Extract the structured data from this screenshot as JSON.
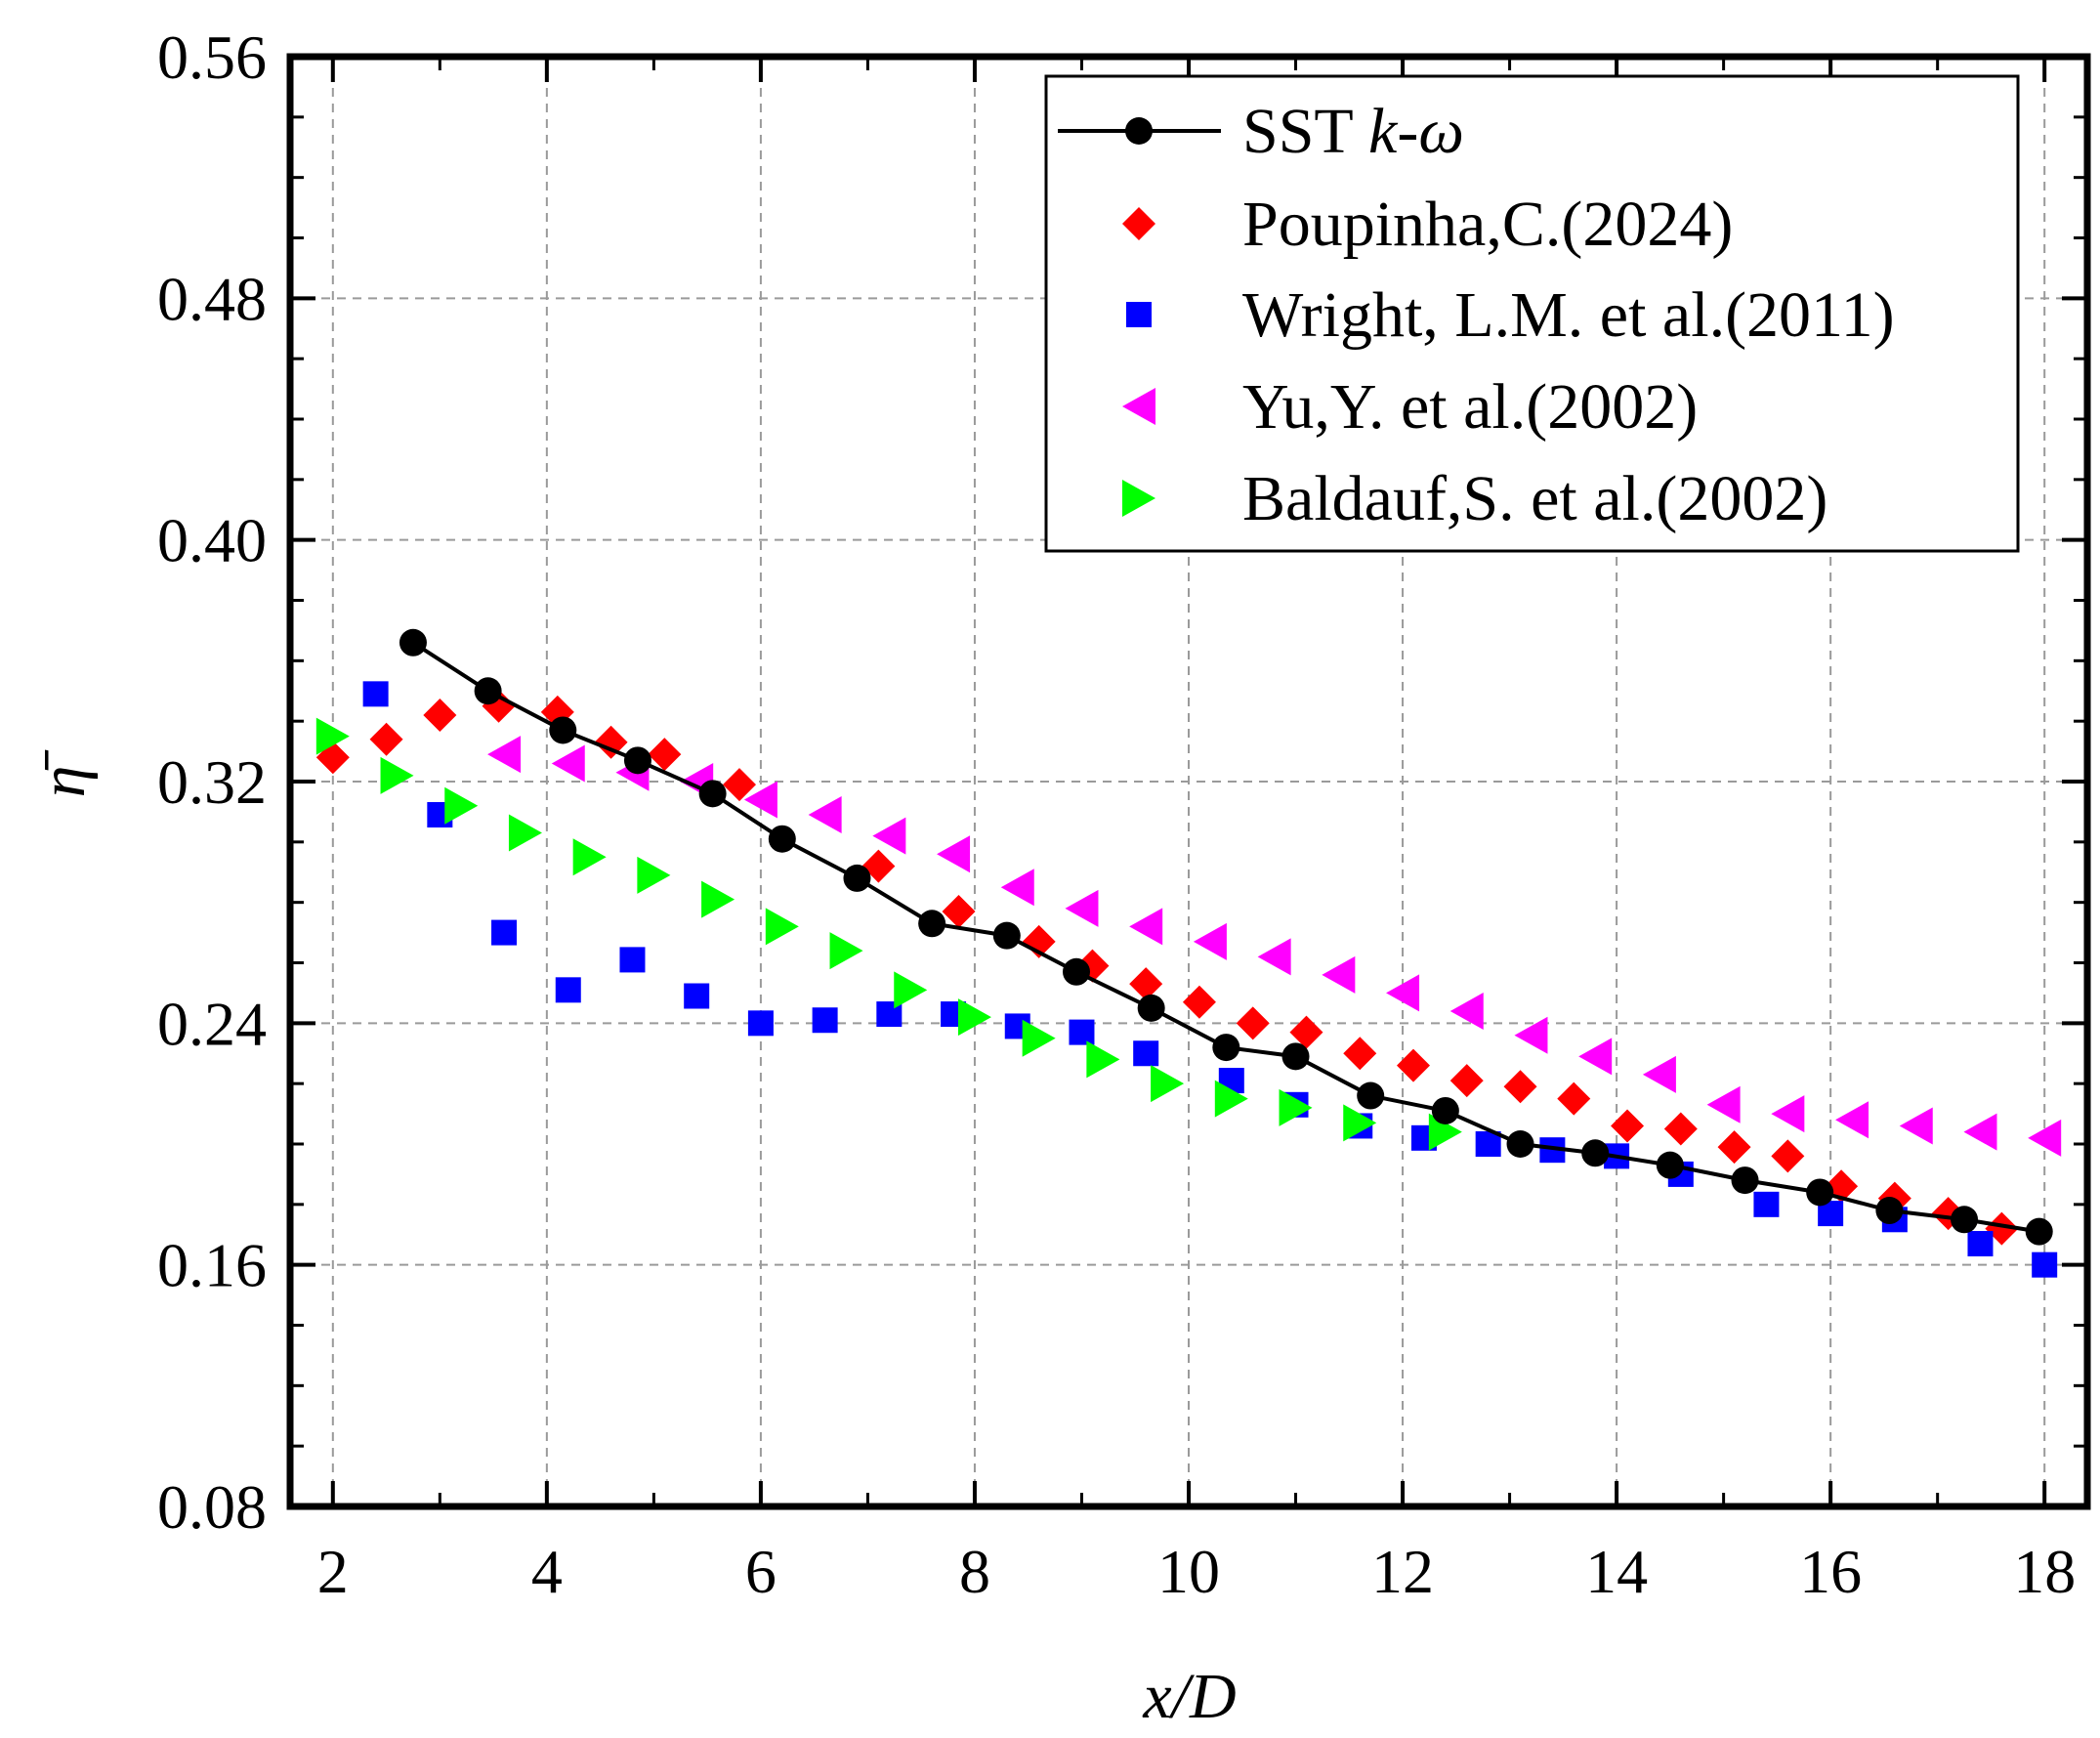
{
  "chart_data": {
    "type": "scatter",
    "title": "",
    "xlabel": "x/D",
    "ylabel": "η̄",
    "xlim": [
      1.6,
      18.4
    ],
    "ylim": [
      0.08,
      0.56
    ],
    "xticks": [
      2,
      4,
      6,
      8,
      10,
      12,
      14,
      16,
      18
    ],
    "xtick_labels": [
      "2",
      "4",
      "6",
      "8",
      "10",
      "12",
      "14",
      "16",
      "18"
    ],
    "yticks": [
      0.08,
      0.16,
      0.24,
      0.32,
      0.4,
      0.48,
      0.56
    ],
    "ytick_labels": [
      "0.08",
      "0.16",
      "0.24",
      "0.32",
      "0.40",
      "0.48",
      "0.56"
    ],
    "grid": true,
    "legend_position": "top-right",
    "series": [
      {
        "name_prefix": "SST ",
        "name_italic": "k-ω",
        "marker": "circle-line",
        "color": "#000000",
        "x": [
          2.75,
          3.45,
          4.15,
          4.85,
          5.55,
          6.2,
          6.9,
          7.6,
          8.3,
          8.95,
          9.65,
          10.35,
          11.0,
          11.7,
          12.4,
          13.1,
          13.8,
          14.5,
          15.2,
          15.9,
          16.55,
          17.25,
          17.95
        ],
        "y": [
          0.366,
          0.35,
          0.337,
          0.327,
          0.316,
          0.301,
          0.288,
          0.273,
          0.269,
          0.257,
          0.245,
          0.232,
          0.229,
          0.216,
          0.211,
          0.2,
          0.197,
          0.193,
          0.188,
          0.184,
          0.178,
          0.175,
          0.171
        ]
      },
      {
        "name": "Poupinha,C.(2024)",
        "marker": "diamond",
        "color": "#ff0000",
        "x": [
          2.0,
          2.5,
          3.0,
          3.55,
          4.1,
          4.6,
          5.1,
          5.8,
          7.1,
          7.85,
          8.6,
          9.1,
          9.6,
          10.1,
          10.6,
          11.1,
          11.6,
          12.1,
          12.6,
          13.1,
          13.6,
          14.1,
          14.6,
          15.1,
          15.6,
          16.1,
          16.6,
          17.1,
          17.6
        ],
        "y": [
          0.328,
          0.334,
          0.342,
          0.345,
          0.343,
          0.333,
          0.329,
          0.319,
          0.292,
          0.277,
          0.267,
          0.259,
          0.253,
          0.247,
          0.24,
          0.237,
          0.23,
          0.226,
          0.221,
          0.219,
          0.215,
          0.206,
          0.205,
          0.199,
          0.196,
          0.186,
          0.182,
          0.177,
          0.172
        ]
      },
      {
        "name": "Wright, L.M. et al.(2011)",
        "marker": "square",
        "color": "#0000ff",
        "x": [
          2.4,
          3.0,
          3.6,
          4.2,
          4.8,
          5.4,
          6.0,
          6.6,
          7.2,
          7.8,
          8.4,
          9.0,
          9.6,
          10.4,
          11.0,
          11.6,
          12.2,
          12.8,
          13.4,
          14.0,
          14.6,
          15.4,
          16.0,
          16.6,
          17.4,
          18.0
        ],
        "y": [
          0.349,
          0.309,
          0.27,
          0.251,
          0.261,
          0.249,
          0.24,
          0.241,
          0.243,
          0.243,
          0.239,
          0.237,
          0.23,
          0.221,
          0.213,
          0.206,
          0.202,
          0.2,
          0.198,
          0.196,
          0.19,
          0.18,
          0.177,
          0.175,
          0.167,
          0.16
        ]
      },
      {
        "name": "Yu,Y. et al.(2002)",
        "marker": "triangle-left",
        "color": "#ff00ff",
        "x": [
          3.6,
          4.2,
          4.8,
          5.4,
          6.0,
          6.6,
          7.2,
          7.8,
          8.4,
          9.0,
          9.6,
          10.2,
          10.8,
          11.4,
          12.0,
          12.6,
          13.2,
          13.8,
          14.4,
          15.0,
          15.6,
          16.2,
          16.8,
          17.4,
          18.0
        ],
        "y": [
          0.329,
          0.326,
          0.323,
          0.32,
          0.314,
          0.309,
          0.302,
          0.296,
          0.285,
          0.278,
          0.272,
          0.267,
          0.262,
          0.256,
          0.25,
          0.244,
          0.236,
          0.229,
          0.223,
          0.213,
          0.21,
          0.208,
          0.206,
          0.204,
          0.202
        ]
      },
      {
        "name": "Baldauf,S. et al.(2002)",
        "marker": "triangle-right",
        "color": "#00ff00",
        "x": [
          2.0,
          2.6,
          3.2,
          3.8,
          4.4,
          5.0,
          5.6,
          6.2,
          6.8,
          7.4,
          8.0,
          8.6,
          9.2,
          9.8,
          10.4,
          11.0,
          11.6,
          12.4
        ],
        "y": [
          0.335,
          0.322,
          0.312,
          0.303,
          0.295,
          0.289,
          0.281,
          0.272,
          0.264,
          0.251,
          0.242,
          0.235,
          0.228,
          0.22,
          0.215,
          0.212,
          0.207,
          0.204
        ]
      }
    ]
  }
}
